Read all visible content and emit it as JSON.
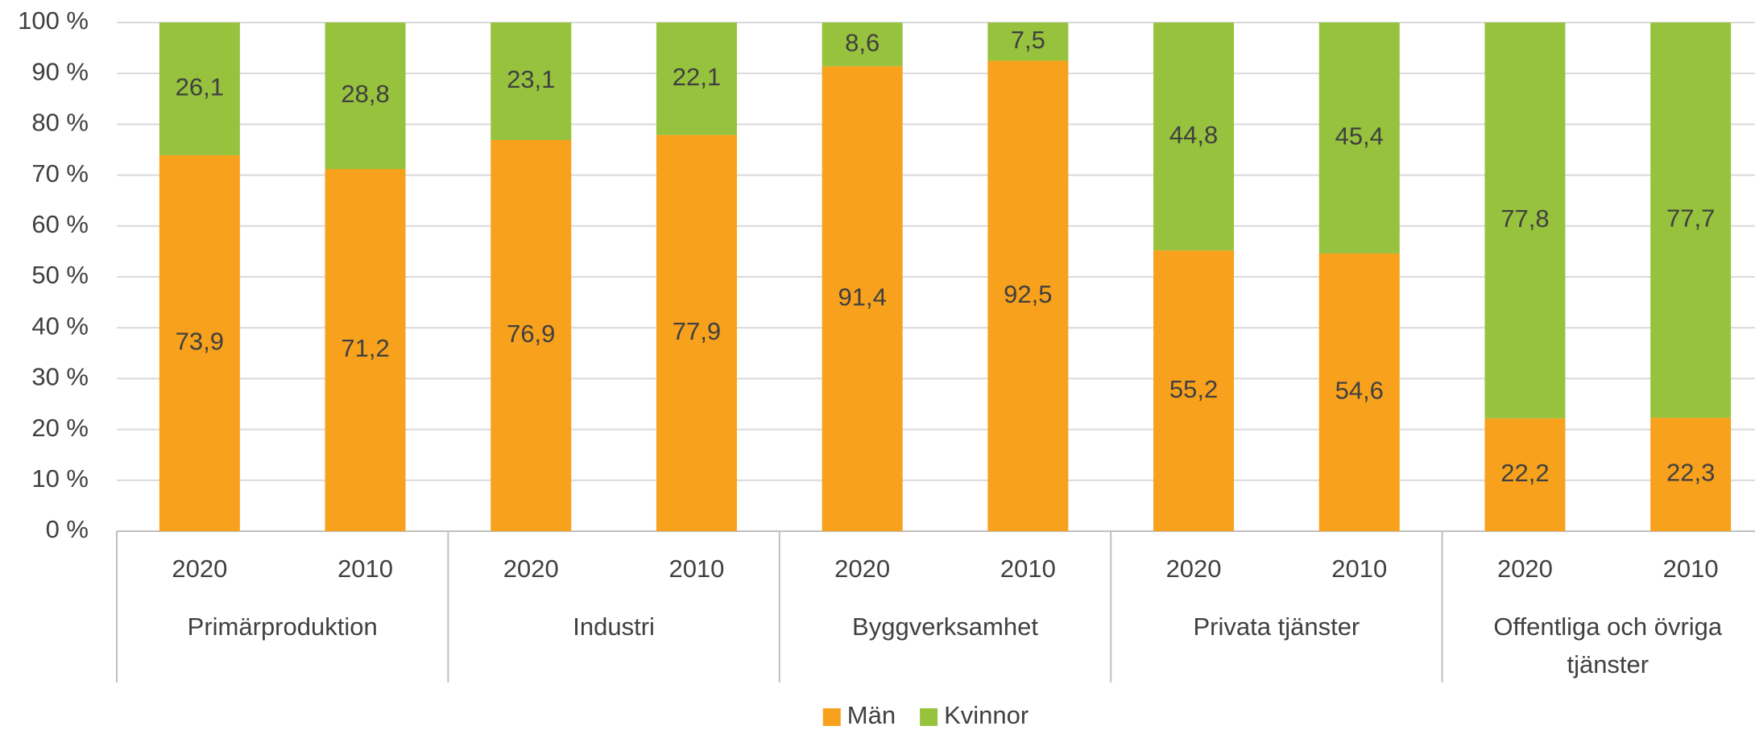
{
  "chart_data": {
    "type": "stacked-bar",
    "groups": [
      "Primärproduktion",
      "Industri",
      "Byggverksamhet",
      "Privata tjänster",
      "Offentliga och övriga tjänster"
    ],
    "categories": [
      "2020",
      "2010",
      "2020",
      "2010",
      "2020",
      "2010",
      "2020",
      "2010",
      "2020",
      "2010"
    ],
    "series": [
      {
        "name": "Män",
        "color": "#f7a11c",
        "values": [
          73.9,
          71.2,
          76.9,
          77.9,
          91.4,
          92.5,
          55.2,
          54.6,
          22.2,
          22.3
        ],
        "value_labels": [
          "73,9",
          "71,2",
          "76,9",
          "77,9",
          "91,4",
          "92,5",
          "55,2",
          "54,6",
          "22,2",
          "22,3"
        ]
      },
      {
        "name": "Kvinnor",
        "color": "#97c23d",
        "values": [
          26.1,
          28.8,
          23.1,
          22.1,
          8.6,
          7.5,
          44.8,
          45.4,
          77.8,
          77.7
        ],
        "value_labels": [
          "26,1",
          "28,8",
          "23,1",
          "22,1",
          "8,6",
          "7,5",
          "44,8",
          "45,4",
          "77,8",
          "77,7"
        ]
      }
    ],
    "ylim": [
      0,
      100
    ],
    "yticks": [
      {
        "value": 0,
        "label": "0 %"
      },
      {
        "value": 10,
        "label": "10 %"
      },
      {
        "value": 20,
        "label": "20 %"
      },
      {
        "value": 30,
        "label": "30 %"
      },
      {
        "value": 40,
        "label": "40 %"
      },
      {
        "value": 50,
        "label": "50 %"
      },
      {
        "value": 60,
        "label": "60 %"
      },
      {
        "value": 70,
        "label": "70 %"
      },
      {
        "value": 80,
        "label": "80 %"
      },
      {
        "value": 90,
        "label": "90 %"
      },
      {
        "value": 100,
        "label": "100 %"
      }
    ],
    "grid": true,
    "legend": "bottom"
  }
}
